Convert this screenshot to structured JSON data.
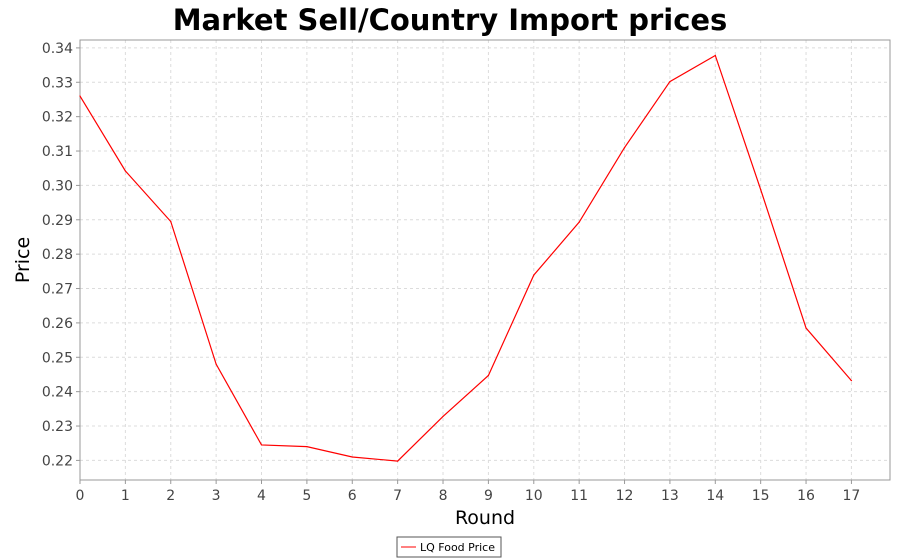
{
  "chart_data": {
    "type": "line",
    "title": "Market Sell/Country Import prices",
    "xlabel": "Round",
    "ylabel": "Price",
    "x": [
      0,
      1,
      2,
      3,
      4,
      5,
      6,
      7,
      8,
      9,
      10,
      11,
      12,
      13,
      14,
      15,
      16,
      17
    ],
    "xlim": [
      0,
      17.85
    ],
    "ylim": [
      0.2143,
      0.3423
    ],
    "x_ticks": [
      "0",
      "1",
      "2",
      "3",
      "4",
      "5",
      "6",
      "7",
      "8",
      "9",
      "10",
      "11",
      "12",
      "13",
      "14",
      "15",
      "16",
      "17"
    ],
    "y_ticks": [
      "0.22",
      "0.23",
      "0.24",
      "0.25",
      "0.26",
      "0.27",
      "0.28",
      "0.29",
      "0.30",
      "0.31",
      "0.32",
      "0.33",
      "0.34"
    ],
    "grid": true,
    "legend_position": "bottom-center",
    "series": [
      {
        "name": "LQ Food Price",
        "color": "#ff0000",
        "values": [
          0.326,
          0.3042,
          0.2895,
          0.248,
          0.2245,
          0.224,
          0.221,
          0.2198,
          0.2328,
          0.2447,
          0.2739,
          0.2893,
          0.311,
          0.3302,
          0.3378,
          0.2988,
          0.2585,
          0.2432
        ]
      }
    ]
  }
}
